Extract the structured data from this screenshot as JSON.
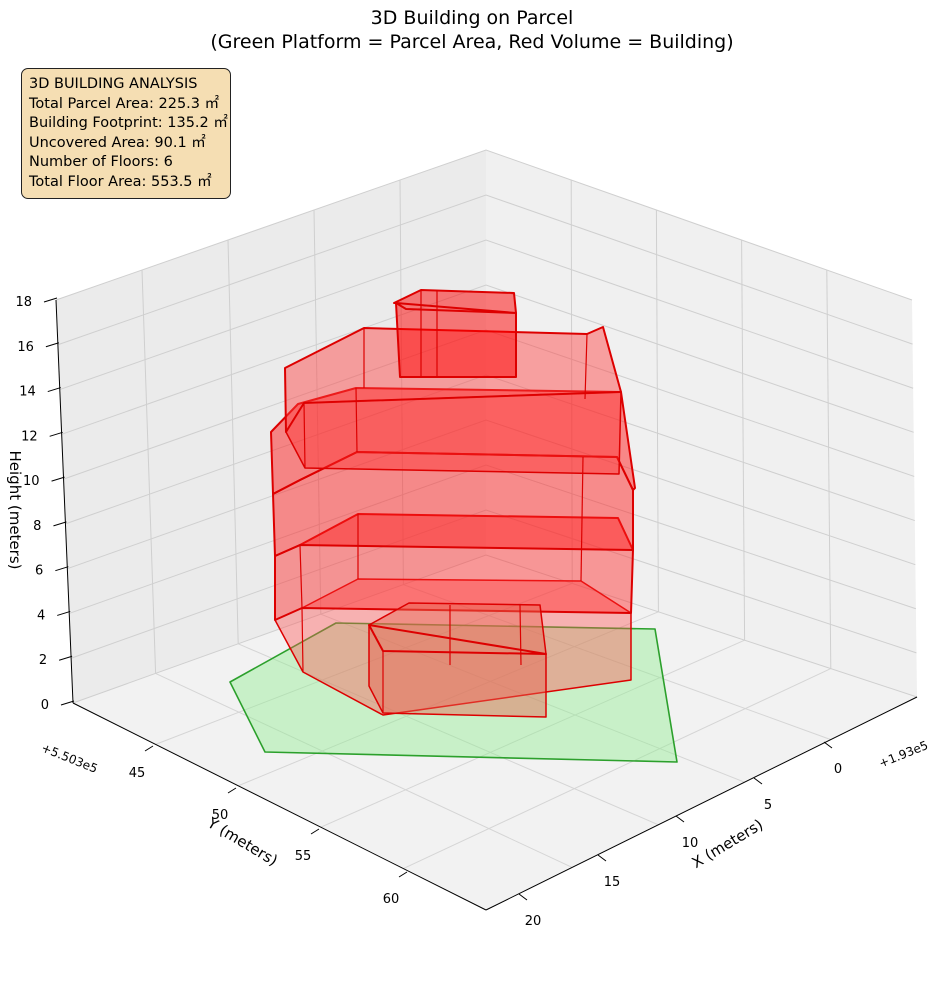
{
  "chart_data": {
    "type": "3d-polygons",
    "title": "3D Building on Parcel",
    "subtitle": "(Green Platform = Parcel Area, Red Volume = Building)",
    "x_label": "X (meters)",
    "y_label": "Y (meters)",
    "z_label": "Height (meters)",
    "x_offset_label": "+1.93e5",
    "y_offset_label": "+5.503e5",
    "x_ticks": [
      "0",
      "5",
      "10",
      "15",
      "20"
    ],
    "y_ticks": [
      "45",
      "50",
      "55",
      "60"
    ],
    "z_ticks": [
      "0",
      "2",
      "4",
      "6",
      "8",
      "10",
      "12",
      "14",
      "16",
      "18"
    ],
    "z_range": [
      0,
      18
    ],
    "grid": true,
    "parcel": {
      "label": "Parcel Area",
      "color": "#2ca02c",
      "fill": "#90ee90",
      "area_m2": 225.3
    },
    "building": {
      "label": "Building",
      "color": "#dd0000",
      "fill": "#ff0000",
      "floors": 6
    }
  },
  "analysis": {
    "heading": "3D BUILDING ANALYSIS",
    "lines": [
      "Total Parcel Area: 225.3 ㎡",
      "Building Footprint: 135.2 ㎡",
      "Uncovered Area: 90.1 ㎡",
      "Number of Floors: 6",
      "Total Floor Area: 553.5 ㎡"
    ]
  }
}
